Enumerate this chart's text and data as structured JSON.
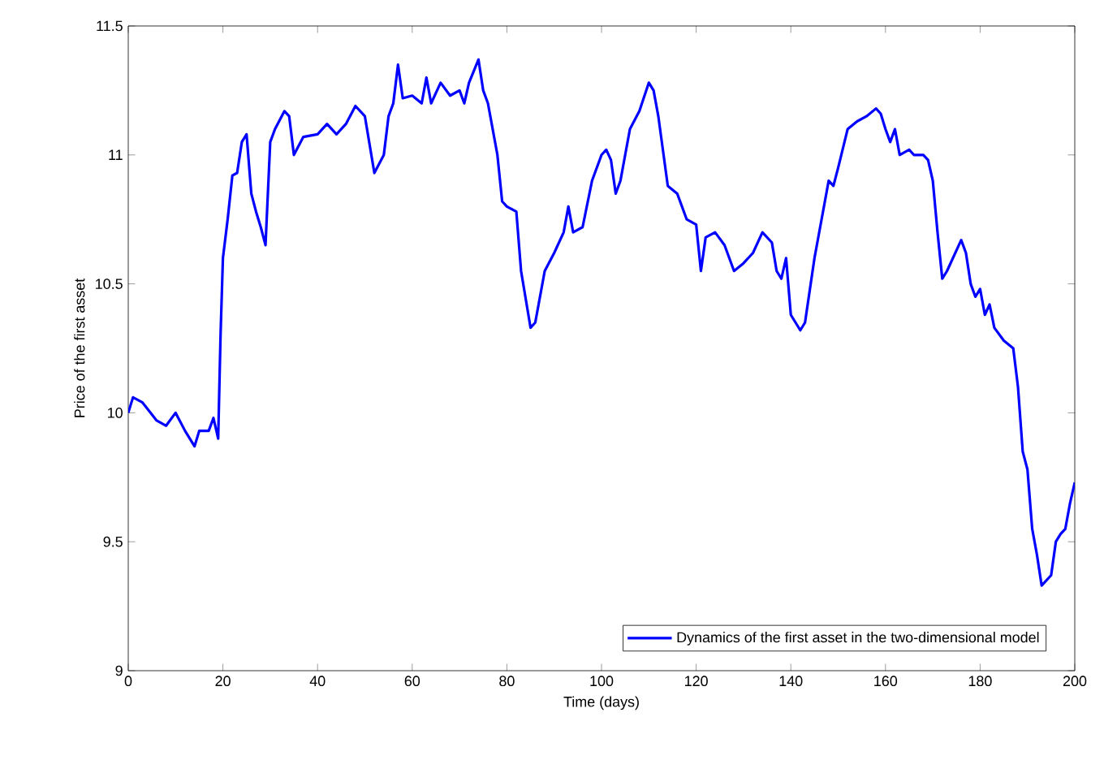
{
  "chart_data": {
    "type": "line",
    "xlabel": "Time (days)",
    "ylabel": "Price of the first asset",
    "x": [
      0,
      1,
      3,
      6,
      8,
      10,
      12,
      14,
      15,
      17,
      18,
      19,
      19.5,
      20,
      21,
      22,
      23,
      24,
      25,
      26,
      27,
      28,
      29,
      30,
      31,
      33,
      34,
      35,
      37,
      40,
      42,
      44,
      46,
      48,
      50,
      52,
      54,
      55,
      56,
      57,
      58,
      60,
      62,
      63,
      64,
      66,
      68,
      70,
      71,
      72,
      74,
      75,
      76,
      78,
      79,
      80,
      82,
      83,
      85,
      86,
      88,
      90,
      92,
      93,
      94,
      96,
      98,
      100,
      101,
      102,
      103,
      104,
      105,
      106,
      108,
      110,
      111,
      112,
      114,
      116,
      118,
      120,
      121,
      122,
      124,
      126,
      128,
      130,
      132,
      134,
      136,
      137,
      138,
      139,
      140,
      142,
      143,
      145,
      146,
      148,
      149,
      150,
      152,
      154,
      156,
      158,
      159,
      160,
      161,
      162,
      163,
      165,
      166,
      168,
      169,
      170,
      171,
      172,
      173,
      176,
      177,
      178,
      179,
      180,
      181,
      182,
      183,
      185,
      187,
      188,
      189,
      190,
      191,
      192,
      193,
      195,
      196,
      197,
      198,
      199,
      200
    ],
    "series": [
      {
        "name": "Dynamics of the first asset in the two-dimensional model",
        "color": "#0000ff",
        "values": [
          10.0,
          10.06,
          10.04,
          9.97,
          9.95,
          10.0,
          9.93,
          9.87,
          9.93,
          9.93,
          9.98,
          9.9,
          10.3,
          10.6,
          10.75,
          10.92,
          10.93,
          11.05,
          11.08,
          10.85,
          10.78,
          10.72,
          10.65,
          11.05,
          11.1,
          11.17,
          11.15,
          11.0,
          11.07,
          11.08,
          11.12,
          11.08,
          11.12,
          11.19,
          11.15,
          10.93,
          11.0,
          11.15,
          11.2,
          11.35,
          11.22,
          11.23,
          11.2,
          11.3,
          11.2,
          11.28,
          11.23,
          11.25,
          11.2,
          11.28,
          11.37,
          11.25,
          11.2,
          11.0,
          10.82,
          10.8,
          10.78,
          10.55,
          10.33,
          10.35,
          10.55,
          10.62,
          10.7,
          10.8,
          10.7,
          10.72,
          10.9,
          11.0,
          11.02,
          10.98,
          10.85,
          10.9,
          11.0,
          11.1,
          11.17,
          11.28,
          11.25,
          11.15,
          10.88,
          10.85,
          10.75,
          10.73,
          10.55,
          10.68,
          10.7,
          10.65,
          10.55,
          10.58,
          10.62,
          10.7,
          10.66,
          10.55,
          10.52,
          10.6,
          10.38,
          10.32,
          10.35,
          10.6,
          10.7,
          10.9,
          10.88,
          10.95,
          11.1,
          11.13,
          11.15,
          11.18,
          11.16,
          11.1,
          11.05,
          11.1,
          11.0,
          11.02,
          11.0,
          11.0,
          10.98,
          10.9,
          10.7,
          10.52,
          10.55,
          10.67,
          10.62,
          10.5,
          10.45,
          10.48,
          10.38,
          10.42,
          10.33,
          10.28,
          10.25,
          10.1,
          9.85,
          9.78,
          9.55,
          9.45,
          9.33,
          9.37,
          9.5,
          9.53,
          9.55,
          9.65,
          9.73
        ]
      }
    ],
    "xlim": [
      0,
      200
    ],
    "ylim": [
      9,
      11.5
    ],
    "xticks": [
      0,
      20,
      40,
      60,
      80,
      100,
      120,
      140,
      160,
      180,
      200
    ],
    "yticks": [
      9,
      9.5,
      10,
      10.5,
      11,
      11.5
    ],
    "legend": "bottom right",
    "grid": false,
    "marker": "none",
    "line_style": "solid"
  }
}
